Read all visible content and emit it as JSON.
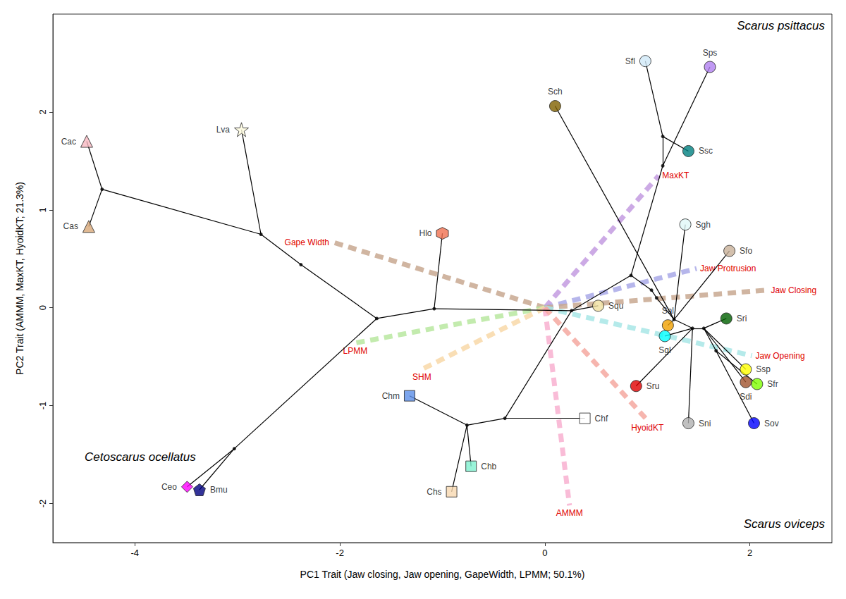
{
  "chart_data": {
    "type": "scatter",
    "xlabel": "PC1 Trait (Jaw closing, Jaw opening, GapeWidth, LPMM; 50.1%)",
    "ylabel": "PC2 Trait (AMMM, MaxKT, HyoidKT; 21.3%)",
    "xlim": [
      -4.8,
      2.8
    ],
    "ylim": [
      -2.4,
      3
    ],
    "xticks": [
      -4,
      -2,
      0,
      2
    ],
    "yticks": [
      -2,
      -1,
      0,
      1,
      2
    ],
    "grid": false,
    "points": [
      {
        "name": "Cac",
        "x": -4.47,
        "y": 1.7,
        "color": "#f8b8c0",
        "marker": "triangle"
      },
      {
        "name": "Cas",
        "x": -4.45,
        "y": 0.83,
        "color": "#d8a878",
        "marker": "triangle"
      },
      {
        "name": "Lva",
        "x": -2.96,
        "y": 1.82,
        "color": "#fffde0",
        "marker": "star"
      },
      {
        "name": "Hlo",
        "x": -1.0,
        "y": 0.76,
        "color": "#f07050",
        "marker": "hexagon"
      },
      {
        "name": "Ceo",
        "x": -3.49,
        "y": -1.83,
        "color": "#ff00ff",
        "marker": "diamond"
      },
      {
        "name": "Bmu",
        "x": -3.37,
        "y": -1.86,
        "color": "#000080",
        "marker": "pentagon"
      },
      {
        "name": "Chm",
        "x": -1.32,
        "y": -0.9,
        "color": "#5b8ee8",
        "marker": "square"
      },
      {
        "name": "Chs",
        "x": -0.91,
        "y": -1.88,
        "color": "#f8d8b0",
        "marker": "square"
      },
      {
        "name": "Chb",
        "x": -0.72,
        "y": -1.62,
        "color": "#80f0d0",
        "marker": "square"
      },
      {
        "name": "Chf",
        "x": 0.39,
        "y": -1.13,
        "color": "#ffffff",
        "marker": "square"
      },
      {
        "name": "Sch",
        "x": 0.1,
        "y": 2.06,
        "color": "#806000",
        "marker": "circle"
      },
      {
        "name": "Sfl",
        "x": 0.98,
        "y": 2.52,
        "color": "#d0e8f8",
        "marker": "circle"
      },
      {
        "name": "Sps",
        "x": 1.61,
        "y": 2.46,
        "color": "#b080f0",
        "marker": "circle"
      },
      {
        "name": "Ssc",
        "x": 1.4,
        "y": 1.6,
        "color": "#008080",
        "marker": "circle"
      },
      {
        "name": "Sgh",
        "x": 1.37,
        "y": 0.85,
        "color": "#e0f8f8",
        "marker": "circle"
      },
      {
        "name": "Sfo",
        "x": 1.8,
        "y": 0.58,
        "color": "#c8b098",
        "marker": "circle"
      },
      {
        "name": "Squ",
        "x": 0.52,
        "y": 0.02,
        "color": "#f0e0a0",
        "marker": "circle"
      },
      {
        "name": "Sal",
        "x": 1.2,
        "y": -0.18,
        "color": "#f0a000",
        "marker": "circle"
      },
      {
        "name": "Sri",
        "x": 1.77,
        "y": -0.11,
        "color": "#006000",
        "marker": "circle"
      },
      {
        "name": "Sgl",
        "x": 1.17,
        "y": -0.29,
        "color": "#00ffff",
        "marker": "circle"
      },
      {
        "name": "Ssp",
        "x": 1.96,
        "y": -0.63,
        "color": "#ffff00",
        "marker": "circle"
      },
      {
        "name": "Sdi",
        "x": 1.96,
        "y": -0.76,
        "color": "#a0522d",
        "marker": "circle"
      },
      {
        "name": "Sfr",
        "x": 2.07,
        "y": -0.78,
        "color": "#80ff00",
        "marker": "circle"
      },
      {
        "name": "Sru",
        "x": 0.89,
        "y": -0.8,
        "color": "#e00000",
        "marker": "circle"
      },
      {
        "name": "Sni",
        "x": 1.4,
        "y": -1.18,
        "color": "#b0b0b0",
        "marker": "circle"
      },
      {
        "name": "Sov",
        "x": 2.04,
        "y": -1.18,
        "color": "#0000ff",
        "marker": "circle"
      }
    ],
    "tree": {
      "nodes": [
        {
          "x": -4.32,
          "y": 1.21
        },
        {
          "x": -2.77,
          "y": 0.75
        },
        {
          "x": -2.38,
          "y": 0.44
        },
        {
          "x": -1.64,
          "y": -0.11
        },
        {
          "x": -3.03,
          "y": -1.44
        },
        {
          "x": -1.08,
          "y": -0.01
        },
        {
          "x": 0.26,
          "y": -0.03
        },
        {
          "x": -0.39,
          "y": -1.13
        },
        {
          "x": -0.76,
          "y": -1.2
        },
        {
          "x": 0.84,
          "y": 0.33
        },
        {
          "x": 1.15,
          "y": 1.45
        },
        {
          "x": 1.15,
          "y": 1.75
        },
        {
          "x": 1.04,
          "y": 0.18
        },
        {
          "x": 1.09,
          "y": 0.1
        },
        {
          "x": 1.26,
          "y": -0.12
        },
        {
          "x": 1.44,
          "y": -0.21
        },
        {
          "x": 1.55,
          "y": -0.21
        },
        {
          "x": 1.67,
          "y": -0.44
        }
      ],
      "edges": [
        [
          0,
          "Cac"
        ],
        [
          0,
          "Cas"
        ],
        [
          1,
          0
        ],
        [
          1,
          "Lva"
        ],
        [
          2,
          1
        ],
        [
          3,
          2
        ],
        [
          3,
          4
        ],
        [
          4,
          "Ceo"
        ],
        [
          4,
          "Bmu"
        ],
        [
          3,
          5
        ],
        [
          5,
          "Hlo"
        ],
        [
          5,
          6
        ],
        [
          6,
          "Squ"
        ],
        [
          6,
          7
        ],
        [
          7,
          "Chf"
        ],
        [
          7,
          8
        ],
        [
          8,
          "Chm"
        ],
        [
          8,
          "Chb"
        ],
        [
          8,
          "Chs"
        ],
        [
          6,
          9
        ],
        [
          9,
          10
        ],
        [
          10,
          "Sps"
        ],
        [
          10,
          11
        ],
        [
          11,
          "Sfl"
        ],
        [
          11,
          "Ssc"
        ],
        [
          9,
          12
        ],
        [
          12,
          13
        ],
        [
          13,
          14
        ],
        [
          14,
          "Sch"
        ],
        [
          14,
          "Sal"
        ],
        [
          14,
          "Sgh"
        ],
        [
          14,
          "Sfo"
        ],
        [
          14,
          15
        ],
        [
          15,
          "Sgl"
        ],
        [
          15,
          "Sru"
        ],
        [
          15,
          "Sni"
        ],
        [
          15,
          16
        ],
        [
          16,
          "Sri"
        ],
        [
          16,
          "Ssp"
        ],
        [
          16,
          "Sdi"
        ],
        [
          16,
          17
        ],
        [
          17,
          "Sfr"
        ],
        [
          17,
          "Sov"
        ]
      ]
    },
    "loadings": {
      "origin": [
        0,
        0
      ],
      "vectors": [
        {
          "name": "Gape Width",
          "x": -2.07,
          "y": 0.67,
          "color": "#c8a890"
        },
        {
          "name": "MaxKT",
          "x": 1.11,
          "y": 1.35,
          "color": "#c39be0"
        },
        {
          "name": "Jaw Protrusion",
          "x": 1.48,
          "y": 0.4,
          "color": "#a9a9e8"
        },
        {
          "name": "Jaw Closing",
          "x": 2.17,
          "y": 0.18,
          "color": "#c8a890"
        },
        {
          "name": "Jaw Opening",
          "x": 2.02,
          "y": -0.49,
          "color": "#a8e6e6"
        },
        {
          "name": "LPMM",
          "x": -1.85,
          "y": -0.36,
          "color": "#b8e8a0"
        },
        {
          "name": "SHM",
          "x": -1.2,
          "y": -0.63,
          "color": "#f8d8a8"
        },
        {
          "name": "AMMM",
          "x": 0.24,
          "y": -2.02,
          "color": "#f8b0d0"
        },
        {
          "name": "HyoidKT",
          "x": 1.0,
          "y": -1.15,
          "color": "#f4a8a0"
        }
      ]
    },
    "annotations": [
      "Scarus psittacus",
      "Cetoscarus ocellatus",
      "Scarus oviceps"
    ]
  }
}
